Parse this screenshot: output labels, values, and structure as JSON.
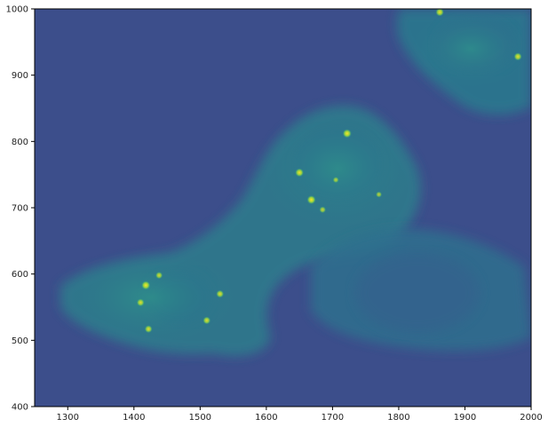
{
  "chart_data": {
    "type": "heatmap",
    "colormap": "viridis",
    "xlim": [
      1250,
      2000
    ],
    "ylim": [
      400,
      1000
    ],
    "x_ticks": [
      "1300",
      "1400",
      "1500",
      "1600",
      "1700",
      "1800",
      "1900",
      "2000"
    ],
    "y_ticks": [
      "400",
      "500",
      "600",
      "700",
      "800",
      "900",
      "1000"
    ],
    "x_tick_values": [
      1300,
      1400,
      1500,
      1600,
      1700,
      1800,
      1900,
      2000
    ],
    "y_tick_values": [
      400,
      500,
      600,
      700,
      800,
      900,
      1000
    ],
    "grid": false,
    "background_color": "#3b4f8c",
    "cell_color": "#2f7f8f",
    "bright_color": "#35b779",
    "spot_color": "#fde725",
    "bright_spots": [
      {
        "x": 1418,
        "y": 583,
        "intensity": 1.0
      },
      {
        "x": 1410,
        "y": 557,
        "intensity": 0.8
      },
      {
        "x": 1422,
        "y": 517,
        "intensity": 0.8
      },
      {
        "x": 1438,
        "y": 598,
        "intensity": 0.7
      },
      {
        "x": 1510,
        "y": 530,
        "intensity": 0.8
      },
      {
        "x": 1530,
        "y": 570,
        "intensity": 0.8
      },
      {
        "x": 1650,
        "y": 753,
        "intensity": 0.95
      },
      {
        "x": 1668,
        "y": 712,
        "intensity": 1.0
      },
      {
        "x": 1722,
        "y": 812,
        "intensity": 1.0
      },
      {
        "x": 1685,
        "y": 697,
        "intensity": 0.6
      },
      {
        "x": 1862,
        "y": 995,
        "intensity": 0.9
      },
      {
        "x": 1980,
        "y": 928,
        "intensity": 0.85
      },
      {
        "x": 1770,
        "y": 720,
        "intensity": 0.5
      },
      {
        "x": 1705,
        "y": 742,
        "intensity": 0.5
      }
    ]
  }
}
